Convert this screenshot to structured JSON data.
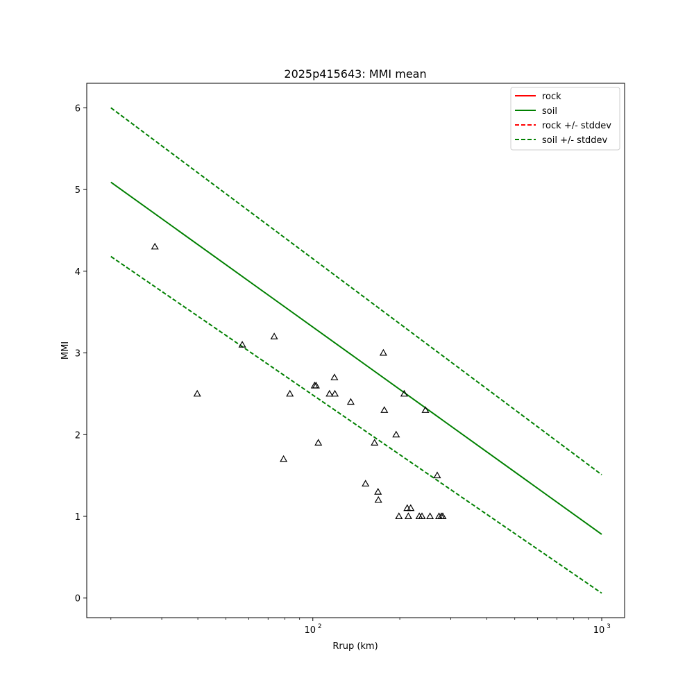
{
  "chart_data": {
    "type": "scatter",
    "title": "2025p415643: MMI mean",
    "xlabel": "Rrup (km)",
    "ylabel": "MMI",
    "xscale": "log",
    "xlim": [
      16.5,
      1200
    ],
    "ylim": [
      -0.24,
      6.3
    ],
    "xticks": [
      {
        "value": 100,
        "label_base": "10",
        "label_exp": "2"
      },
      {
        "value": 1000,
        "label_base": "10",
        "label_exp": "3"
      }
    ],
    "yticks": [
      0,
      1,
      2,
      3,
      4,
      5,
      6
    ],
    "grid": false,
    "legend_position": "top-right",
    "series": [
      {
        "name": "rock",
        "style": "solid",
        "color": "#ff0000",
        "visible_in_plot": false,
        "x": [],
        "y": []
      },
      {
        "name": "soil",
        "style": "solid",
        "color": "#008000",
        "x": [
          20,
          1000
        ],
        "y": [
          5.09,
          0.78
        ]
      },
      {
        "name": "rock +/- stddev",
        "style": "dashed",
        "color": "#ff0000",
        "visible_in_plot": false,
        "x": [],
        "y": []
      },
      {
        "name": "soil +/- stddev",
        "style": "dashed",
        "color": "#008000",
        "lines": [
          {
            "x": [
              20,
              1000
            ],
            "y": [
              6.0,
              1.51
            ]
          },
          {
            "x": [
              20,
              1000
            ],
            "y": [
              4.18,
              0.06
            ]
          }
        ]
      }
    ],
    "observations": {
      "marker": "triangle",
      "x": [
        28.4,
        39.8,
        57,
        73.5,
        79.2,
        83.3,
        101.4,
        102.6,
        104.5,
        114.2,
        118.8,
        119.2,
        135.3,
        152.2,
        163.6,
        168.1,
        168.6,
        175.5,
        176.8,
        194.3,
        198.6,
        207.1,
        212.2,
        214.1,
        218.2,
        233.6,
        238.6,
        254.5,
        269.5,
        273.3,
        278.4,
        281.7,
        245.3
      ],
      "y": [
        4.3,
        2.5,
        3.1,
        3.2,
        1.7,
        2.5,
        2.6,
        2.6,
        1.9,
        2.5,
        2.7,
        2.5,
        2.4,
        1.4,
        1.9,
        1.3,
        1.2,
        3.0,
        2.3,
        2.0,
        1.0,
        2.5,
        1.1,
        1.0,
        1.1,
        1.0,
        1.0,
        1.0,
        1.5,
        1.0,
        1.0,
        1.0,
        2.3
      ]
    }
  }
}
